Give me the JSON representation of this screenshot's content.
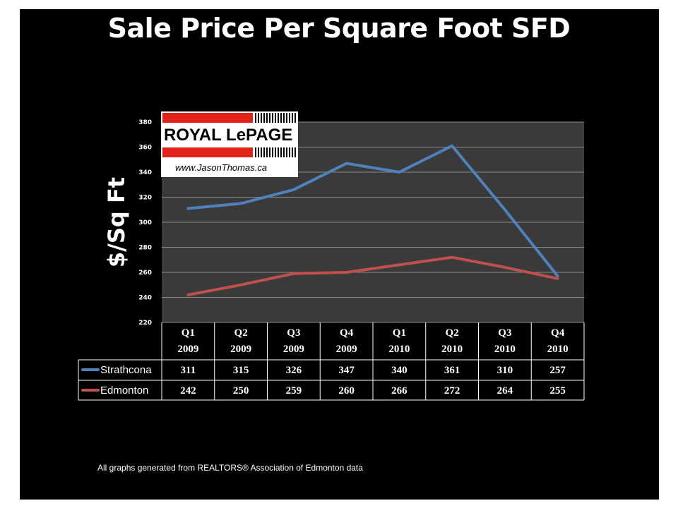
{
  "title": "Sale Price Per Square Foot SFD",
  "logo": {
    "brand": "ROYAL LePAGE",
    "website": "www.JasonThomas.ca"
  },
  "footnote": "All graphs generated from REALTORS® Association of Edmonton data",
  "chart_data": {
    "type": "line",
    "title": "Sale Price Per Square Foot SFD",
    "ylabel": "$/Sq Ft",
    "xlabel": "",
    "ylim": [
      220,
      380
    ],
    "yticks": [
      220,
      240,
      260,
      280,
      300,
      320,
      340,
      360,
      380
    ],
    "grid": true,
    "categories": [
      [
        "Q1",
        "2009"
      ],
      [
        "Q2",
        "2009"
      ],
      [
        "Q3",
        "2009"
      ],
      [
        "Q4",
        "2009"
      ],
      [
        "Q1",
        "2010"
      ],
      [
        "Q2",
        "2010"
      ],
      [
        "Q3",
        "2010"
      ],
      [
        "Q4",
        "2010"
      ]
    ],
    "series": [
      {
        "name": "Strathcona",
        "color": "#4f81bd",
        "values": [
          311,
          315,
          326,
          347,
          340,
          361,
          310,
          257
        ]
      },
      {
        "name": "Edmonton",
        "color": "#c0504d",
        "values": [
          242,
          250,
          259,
          260,
          266,
          272,
          264,
          255
        ]
      }
    ],
    "legend": "data-table"
  }
}
